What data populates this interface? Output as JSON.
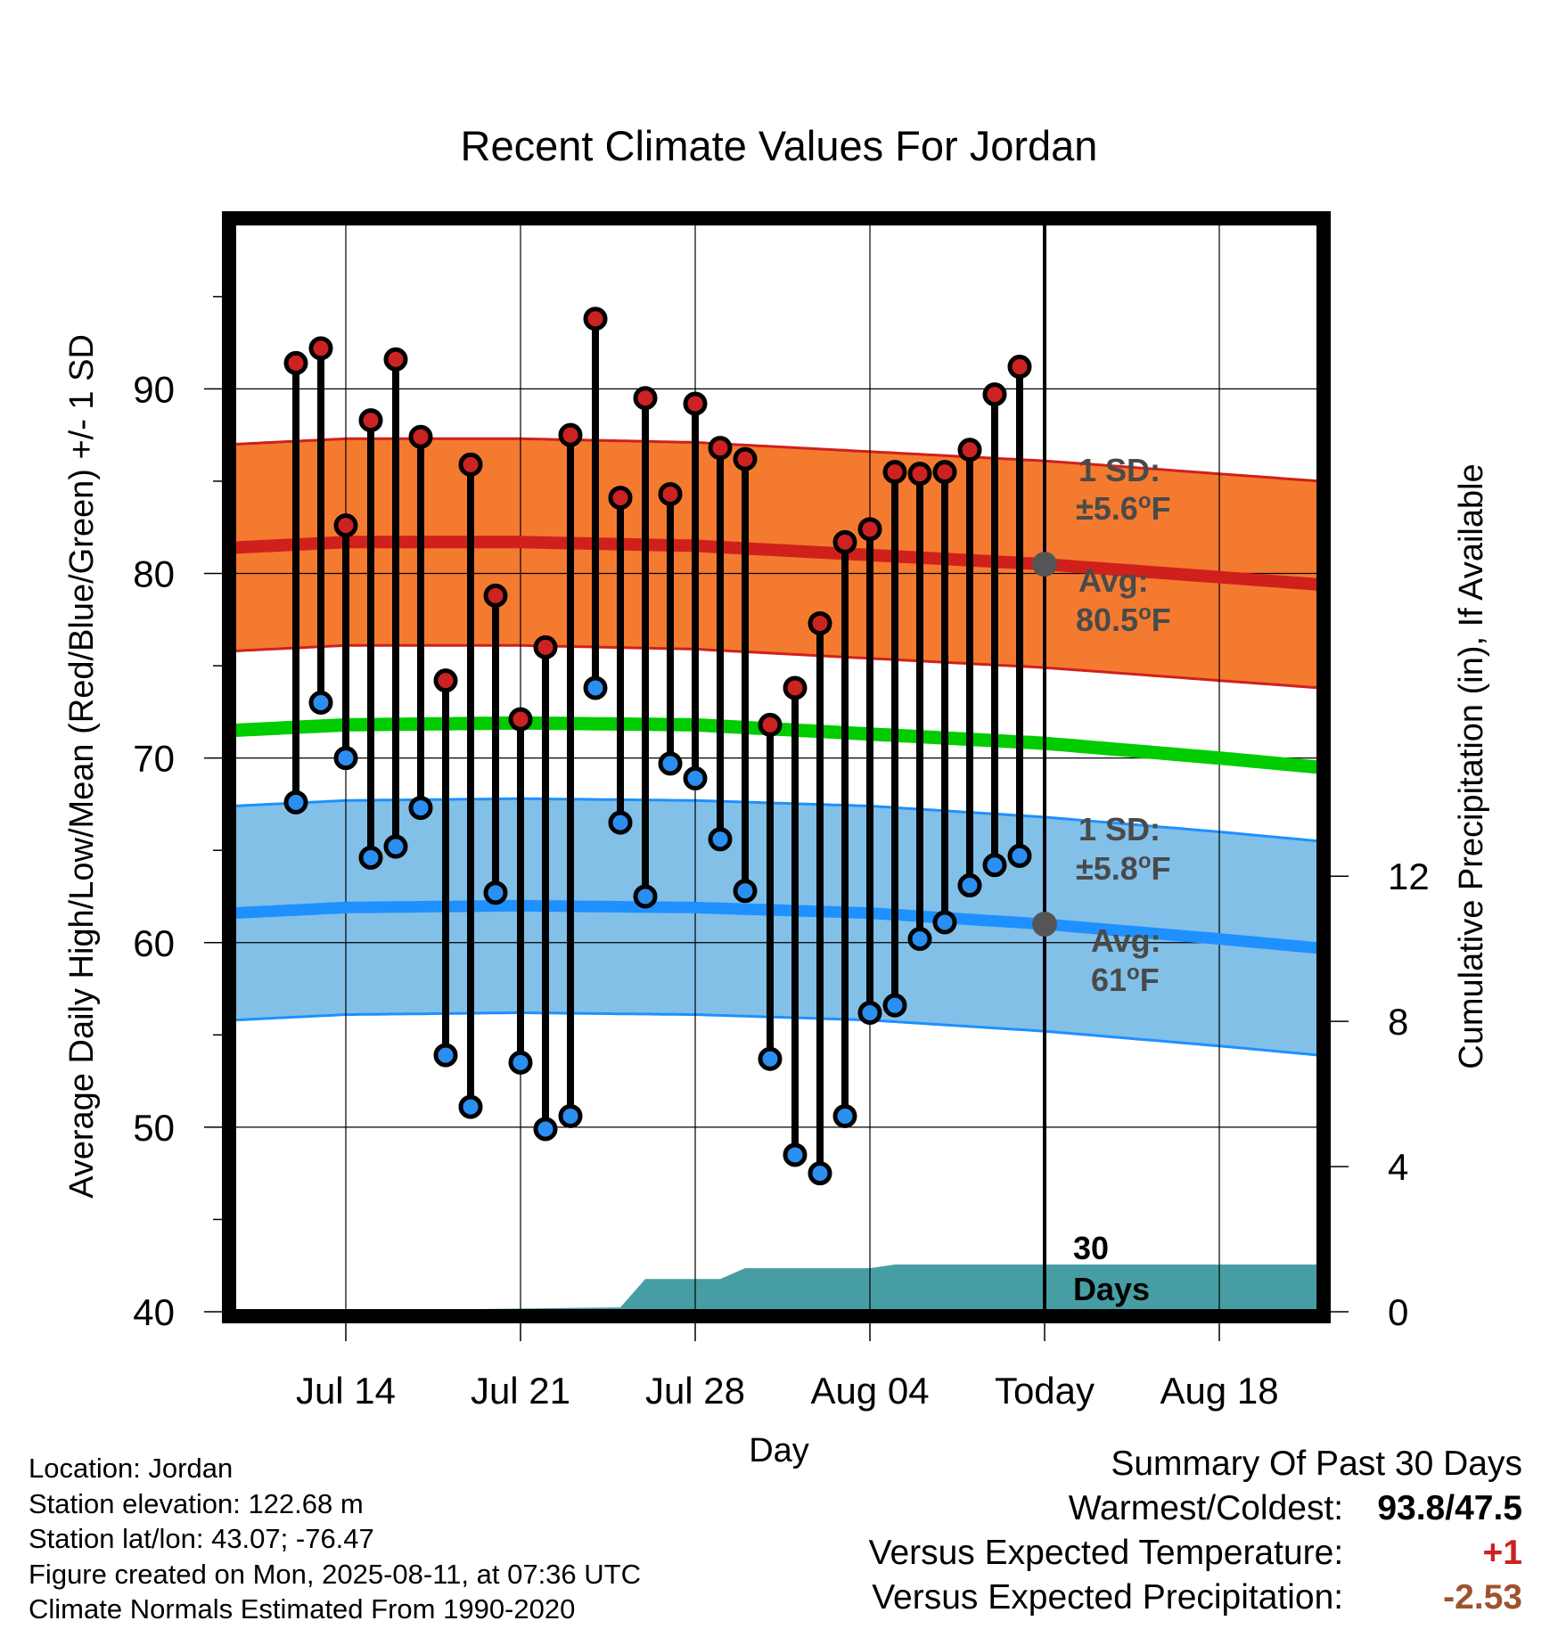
{
  "chart_data": {
    "type": "line",
    "title": "Recent Climate Values For Jordan",
    "xlabel": "Day",
    "ylabel": "Average Daily High/Low/Mean (Red/Blue/Green) +/- 1 SD",
    "y2label": "Cumulative Precipitation (in), If Available",
    "ylim": [
      40,
      99
    ],
    "y2lim": [
      0,
      30
    ],
    "yticks": [
      40,
      50,
      60,
      70,
      80,
      90
    ],
    "y2ticks": [
      0,
      4,
      8,
      12
    ],
    "xrange_days": [
      -32.5,
      11
    ],
    "xticks": [
      {
        "day": -28,
        "label": "Jul 14"
      },
      {
        "day": -21,
        "label": "Jul 21"
      },
      {
        "day": -14,
        "label": "Jul 28"
      },
      {
        "day": -7,
        "label": "Aug 04"
      },
      {
        "day": 0,
        "label": "Today"
      },
      {
        "day": 7,
        "label": "Aug 18"
      }
    ],
    "observations": {
      "dates": [
        "Jul 12",
        "Jul 13",
        "Jul 14",
        "Jul 15",
        "Jul 16",
        "Jul 17",
        "Jul 18",
        "Jul 19",
        "Jul 20",
        "Jul 21",
        "Jul 22",
        "Jul 23",
        "Jul 24",
        "Jul 25",
        "Jul 26",
        "Jul 27",
        "Jul 28",
        "Jul 29",
        "Jul 30",
        "Jul 31",
        "Aug 01",
        "Aug 02",
        "Aug 03",
        "Aug 04",
        "Aug 05",
        "Aug 06",
        "Aug 07",
        "Aug 08",
        "Aug 09",
        "Aug 10"
      ],
      "highs": [
        91.4,
        92.2,
        82.6,
        88.3,
        91.6,
        87.4,
        74.2,
        85.9,
        78.8,
        72.1,
        76.0,
        87.5,
        93.8,
        84.1,
        89.5,
        84.3,
        89.2,
        86.8,
        86.2,
        71.8,
        73.8,
        77.3,
        81.7,
        82.4,
        85.5,
        85.4,
        85.5,
        86.7,
        89.7,
        91.2
      ],
      "lows": [
        67.6,
        73.0,
        70.0,
        64.6,
        65.2,
        67.3,
        53.9,
        51.1,
        62.7,
        53.5,
        49.9,
        50.6,
        73.8,
        66.5,
        62.5,
        69.7,
        68.9,
        65.6,
        62.8,
        53.7,
        48.5,
        47.5,
        50.6,
        56.2,
        56.6,
        60.2,
        61.1,
        63.1,
        64.2,
        64.7
      ]
    },
    "normals": {
      "days": [
        -32.5,
        -28,
        -21,
        -14,
        -7,
        0,
        7,
        11
      ],
      "high_avg": [
        81.4,
        81.7,
        81.7,
        81.5,
        81.0,
        80.5,
        79.8,
        79.4
      ],
      "low_avg": [
        61.6,
        61.9,
        62.0,
        61.9,
        61.6,
        61.0,
        60.2,
        59.7
      ],
      "mean_avg": [
        71.5,
        71.8,
        71.9,
        71.8,
        71.3,
        70.8,
        70.0,
        69.5
      ],
      "high_sd": 5.6,
      "low_sd": 5.8
    },
    "precip_cumulative": {
      "days": [
        -32.5,
        -27,
        -25,
        -22,
        -17,
        -16,
        -15,
        -13,
        -12,
        -11,
        -10,
        -9,
        -8,
        -7,
        -6,
        -5,
        -4,
        11
      ],
      "values": [
        0,
        0,
        0.05,
        0.08,
        0.12,
        0.9,
        0.9,
        0.9,
        1.2,
        1.2,
        1.2,
        1.2,
        1.2,
        1.2,
        1.3,
        1.3,
        1.3,
        1.3
      ]
    },
    "annotations": {
      "high_sd_text_1": "1 SD:",
      "high_sd_text_2": "±5.6",
      "high_avg_text_1": "Avg:",
      "high_avg_text_2": "80.5",
      "low_sd_text_1": "1 SD:",
      "low_sd_text_2": "±5.8",
      "low_avg_text_1": "Avg:",
      "low_avg_text_2": "61",
      "unit_o": "o",
      "unit_f": "F",
      "window_1": "30",
      "window_2": "Days"
    },
    "colors": {
      "high_band": "#f47a30",
      "high_line": "#d0201c",
      "low_band": "#82c0e8",
      "low_line": "#1e90ff",
      "mean_line": "#00cc00",
      "precip": "#469ea4",
      "high_dot": "#cc2222",
      "low_dot": "#2a8ff0",
      "today_dot": "#555555"
    },
    "grid": true
  },
  "info": {
    "location": "Location: Jordan",
    "elevation": "Station elevation: 122.68 m",
    "latlon": "Station lat/lon: 43.07; -76.47",
    "created": "Figure created on Mon, 2025-08-11, at 07:36 UTC",
    "normals_period": "Climate Normals Estimated From 1990-2020"
  },
  "summary": {
    "heading": "Summary Of Past 30 Days",
    "warm_cold_label": "Warmest/Coldest:",
    "warm_cold_value": "93.8/47.5",
    "temp_label": "Versus Expected Temperature:",
    "temp_value": "+1",
    "precip_label": "Versus Expected Precipitation:",
    "precip_value": "-2.53"
  }
}
